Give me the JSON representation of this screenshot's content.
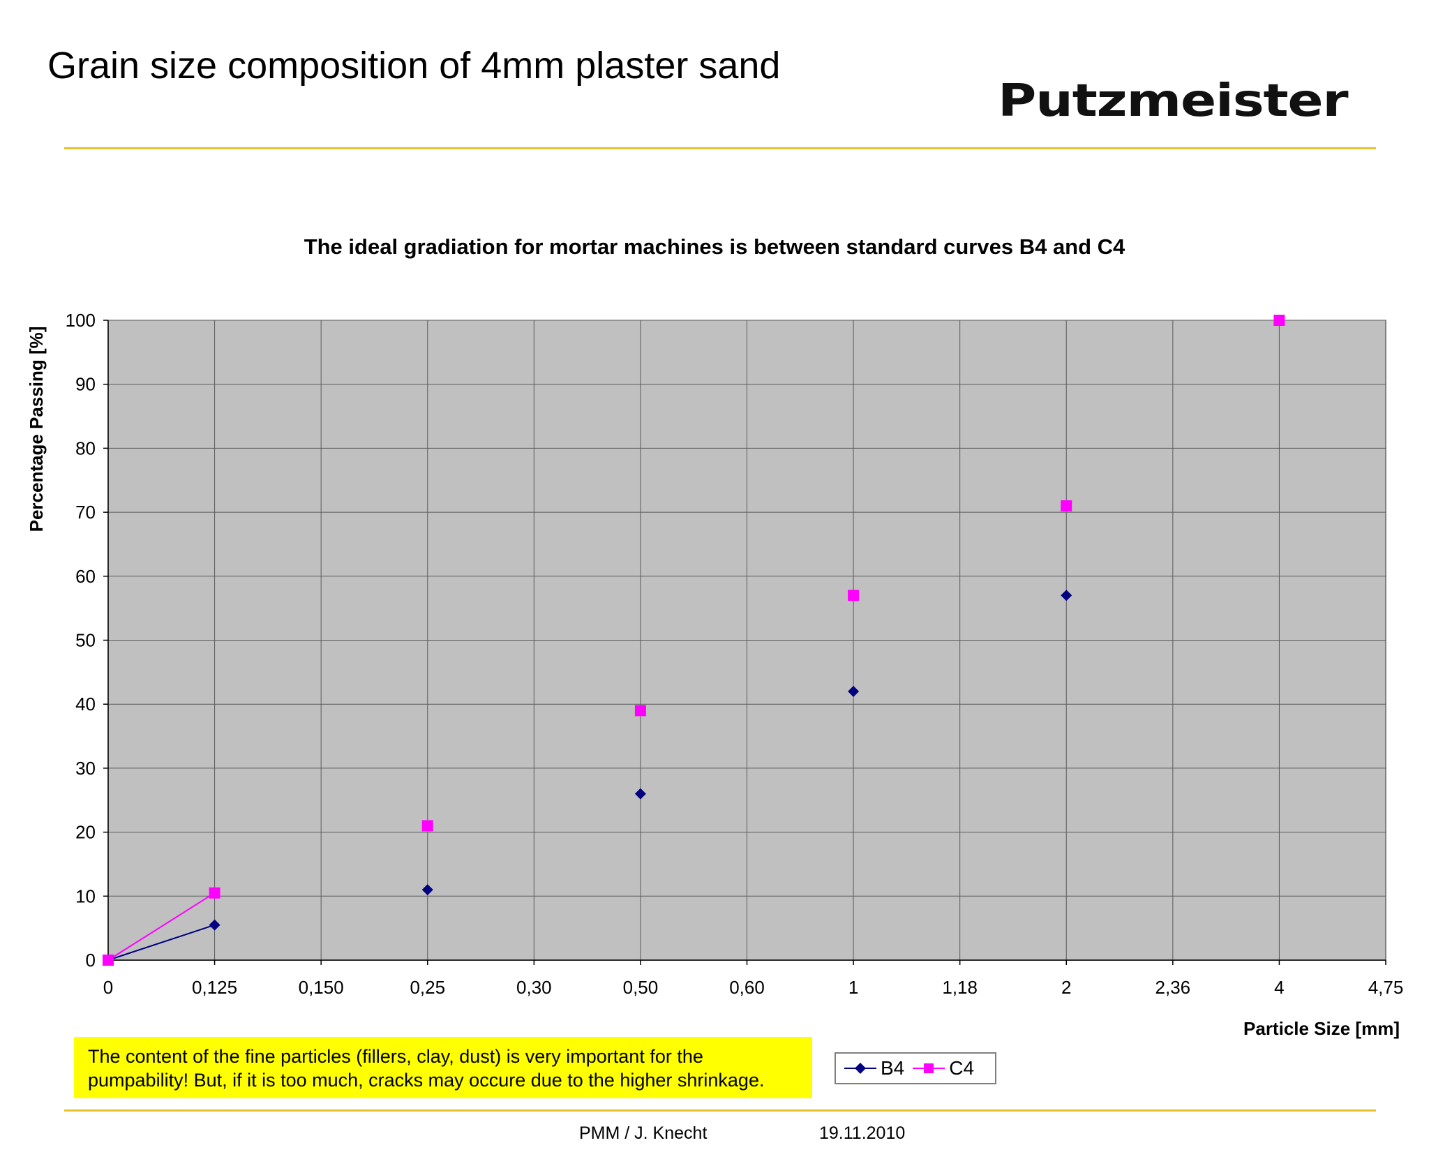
{
  "header": {
    "title": "Grain size composition of 4mm plaster sand",
    "logo_text": "Putzmeister"
  },
  "note": {
    "line1": "The content  of the fine particles (fillers, clay, dust) is very important for the",
    "line2": "pumpability! But, if it is too much, cracks may occure due to the higher shrinkage."
  },
  "footer": {
    "author": "PMM / J. Knecht",
    "date": "19.11.2010"
  },
  "colors": {
    "accent_rule": "#e8c22a",
    "plot_background": "#c0c0c0",
    "note_background": "#ffff00"
  },
  "chart_data": {
    "type": "line",
    "title": "The ideal gradiation for mortar machines is between standard curves B4 and C4",
    "xlabel": "Particle Size [mm]",
    "ylabel": "Percentage Passing [%]",
    "categories": [
      "0",
      "0,125",
      "0,150",
      "0,25",
      "0,30",
      "0,50",
      "0,60",
      "1",
      "1,18",
      "2",
      "2,36",
      "4",
      "4,75"
    ],
    "ylim": [
      0,
      100
    ],
    "yticks": [
      0,
      10,
      20,
      30,
      40,
      50,
      60,
      70,
      80,
      90,
      100
    ],
    "grid": true,
    "legend_position": "bottom-center",
    "series": [
      {
        "name": "B4",
        "color": "#000080",
        "marker": "diamond",
        "values": [
          0,
          5.5,
          null,
          11,
          null,
          26,
          null,
          42,
          null,
          57,
          null,
          null,
          null
        ]
      },
      {
        "name": "C4",
        "color": "#ff00ff",
        "marker": "square",
        "values": [
          0,
          10.5,
          null,
          21,
          null,
          39,
          null,
          57,
          null,
          71,
          null,
          100,
          null
        ]
      }
    ]
  }
}
